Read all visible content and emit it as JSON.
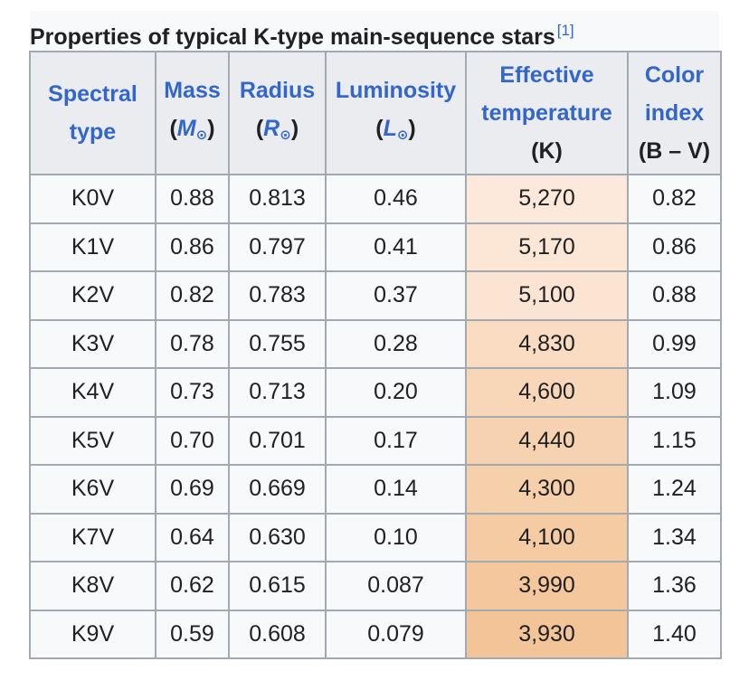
{
  "caption": {
    "title": "Properties of typical K-type main-sequence stars",
    "ref": "[1]"
  },
  "headers": {
    "spectral_type": {
      "line1": "Spectral",
      "line2": "type"
    },
    "mass": {
      "name": "Mass",
      "unit_open": "(",
      "symbol": "M",
      "sun": "⊙",
      "unit_close": ")"
    },
    "radius": {
      "name": "Radius",
      "unit_open": "(",
      "symbol": "R",
      "sun": "⊙",
      "unit_close": ")"
    },
    "luminosity": {
      "name": "Luminosity",
      "unit_open": "(",
      "symbol": "L",
      "sun": "⊙",
      "unit_close": ")"
    },
    "temperature": {
      "line1": "Effective",
      "line2": "temperature",
      "unit": "(K)"
    },
    "color_index": {
      "line1": "Color",
      "line2": "index",
      "unit": "(B – V)"
    }
  },
  "rows": [
    {
      "type": "K0V",
      "mass": "0.88",
      "radius": "0.813",
      "luminosity": "0.46",
      "temperature": "5,270",
      "color_index": "0.82"
    },
    {
      "type": "K1V",
      "mass": "0.86",
      "radius": "0.797",
      "luminosity": "0.41",
      "temperature": "5,170",
      "color_index": "0.86"
    },
    {
      "type": "K2V",
      "mass": "0.82",
      "radius": "0.783",
      "luminosity": "0.37",
      "temperature": "5,100",
      "color_index": "0.88"
    },
    {
      "type": "K3V",
      "mass": "0.78",
      "radius": "0.755",
      "luminosity": "0.28",
      "temperature": "4,830",
      "color_index": "0.99"
    },
    {
      "type": "K4V",
      "mass": "0.73",
      "radius": "0.713",
      "luminosity": "0.20",
      "temperature": "4,600",
      "color_index": "1.09"
    },
    {
      "type": "K5V",
      "mass": "0.70",
      "radius": "0.701",
      "luminosity": "0.17",
      "temperature": "4,440",
      "color_index": "1.15"
    },
    {
      "type": "K6V",
      "mass": "0.69",
      "radius": "0.669",
      "luminosity": "0.14",
      "temperature": "4,300",
      "color_index": "1.24"
    },
    {
      "type": "K7V",
      "mass": "0.64",
      "radius": "0.630",
      "luminosity": "0.10",
      "temperature": "4,100",
      "color_index": "1.34"
    },
    {
      "type": "K8V",
      "mass": "0.62",
      "radius": "0.615",
      "luminosity": "0.087",
      "temperature": "3,990",
      "color_index": "1.36"
    },
    {
      "type": "K9V",
      "mass": "0.59",
      "radius": "0.608",
      "luminosity": "0.079",
      "temperature": "3,930",
      "color_index": "1.40"
    }
  ],
  "temperature_colors": [
    "#fce9dc",
    "#fce6d6",
    "#fbe4d2",
    "#fadcc3",
    "#f8d6b8",
    "#f7d2b1",
    "#f6cfab",
    "#f5cba4",
    "#f4c79d",
    "#f3c497"
  ]
}
